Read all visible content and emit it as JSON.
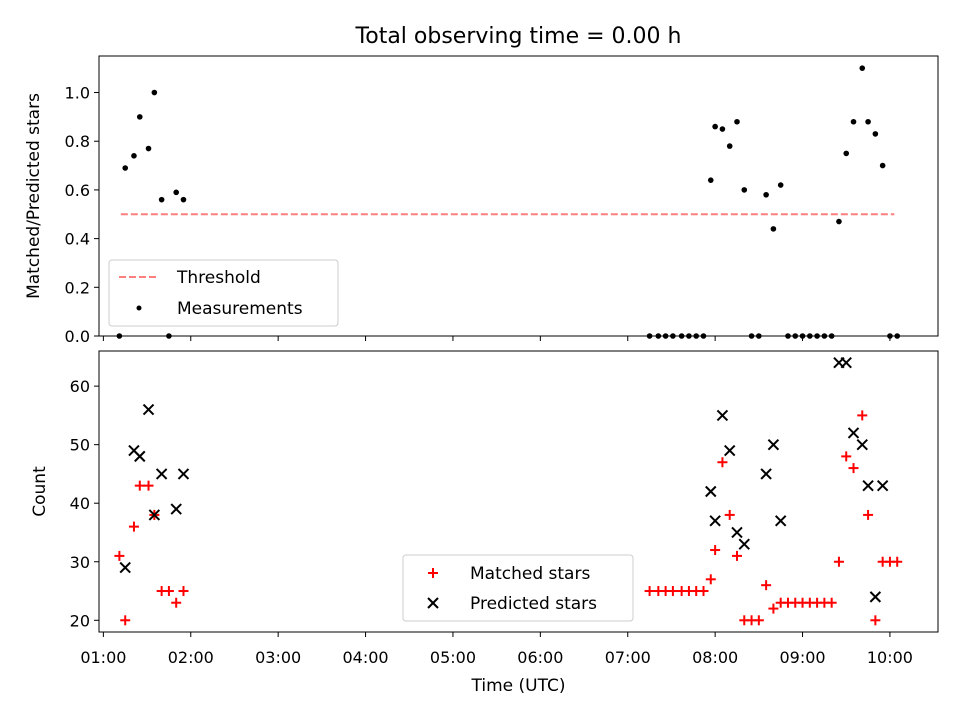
{
  "chart_data": [
    {
      "type": "scatter",
      "title": "Total observing time = 0.00 h",
      "xlabel": "",
      "ylabel": "Matched/Predicted stars",
      "xlim": [
        "00:57",
        "10:33"
      ],
      "ylim": [
        0,
        1.15
      ],
      "yticks": [
        0.0,
        0.2,
        0.4,
        0.6,
        0.8,
        1.0
      ],
      "ytick_labels": [
        "0.0",
        "0.2",
        "0.4",
        "0.6",
        "0.8",
        "1.0"
      ],
      "grid": false,
      "legend": {
        "placement": "lower-left",
        "entries": [
          "Threshold",
          "Measurements"
        ]
      },
      "threshold": {
        "name": "Threshold",
        "y": 0.5,
        "x_start": "01:12",
        "x_end": "10:03",
        "color": "#ff7f7f",
        "style": "dashed"
      },
      "series": [
        {
          "name": "Measurements",
          "marker": "dot",
          "color": "#000000",
          "points": [
            [
              "01:11",
              0.0
            ],
            [
              "01:15",
              0.69
            ],
            [
              "01:21",
              0.74
            ],
            [
              "01:25",
              0.9
            ],
            [
              "01:31",
              0.77
            ],
            [
              "01:35",
              1.0
            ],
            [
              "01:40",
              0.56
            ],
            [
              "01:45",
              0.0
            ],
            [
              "01:50",
              0.59
            ],
            [
              "01:55",
              0.56
            ],
            [
              "07:15",
              0.0
            ],
            [
              "07:21",
              0.0
            ],
            [
              "07:26",
              0.0
            ],
            [
              "07:31",
              0.0
            ],
            [
              "07:37",
              0.0
            ],
            [
              "07:42",
              0.0
            ],
            [
              "07:47",
              0.0
            ],
            [
              "07:52",
              0.0
            ],
            [
              "07:57",
              0.64
            ],
            [
              "08:00",
              0.86
            ],
            [
              "08:05",
              0.85
            ],
            [
              "08:10",
              0.78
            ],
            [
              "08:15",
              0.88
            ],
            [
              "08:20",
              0.6
            ],
            [
              "08:25",
              0.0
            ],
            [
              "08:30",
              0.0
            ],
            [
              "08:35",
              0.58
            ],
            [
              "08:40",
              0.44
            ],
            [
              "08:45",
              0.62
            ],
            [
              "08:50",
              0.0
            ],
            [
              "08:55",
              0.0
            ],
            [
              "09:00",
              0.0
            ],
            [
              "09:05",
              0.0
            ],
            [
              "09:10",
              0.0
            ],
            [
              "09:15",
              0.0
            ],
            [
              "09:20",
              0.0
            ],
            [
              "09:25",
              0.47
            ],
            [
              "09:30",
              0.75
            ],
            [
              "09:35",
              0.88
            ],
            [
              "09:41",
              1.1
            ],
            [
              "09:45",
              0.88
            ],
            [
              "09:50",
              0.83
            ],
            [
              "09:55",
              0.7
            ],
            [
              "10:00",
              0.0
            ],
            [
              "10:05",
              0.0
            ]
          ]
        }
      ]
    },
    {
      "type": "scatter",
      "title": "",
      "xlabel": "Time (UTC)",
      "ylabel": "Count",
      "xlim": [
        "00:57",
        "10:33"
      ],
      "ylim": [
        18,
        66
      ],
      "xticks": [
        "01:00",
        "02:00",
        "03:00",
        "04:00",
        "05:00",
        "06:00",
        "07:00",
        "08:00",
        "09:00",
        "10:00"
      ],
      "yticks": [
        20,
        30,
        40,
        50,
        60
      ],
      "ytick_labels": [
        "20",
        "30",
        "40",
        "50",
        "60"
      ],
      "grid": false,
      "legend": {
        "placement": "lower-center",
        "entries": [
          "Matched stars",
          "Predicted stars"
        ]
      },
      "series": [
        {
          "name": "Matched stars",
          "marker": "plus",
          "color": "#ff0000",
          "points": [
            [
              "01:11",
              31
            ],
            [
              "01:15",
              20
            ],
            [
              "01:21",
              36
            ],
            [
              "01:25",
              43
            ],
            [
              "01:31",
              43
            ],
            [
              "01:35",
              38
            ],
            [
              "01:40",
              25
            ],
            [
              "01:45",
              25
            ],
            [
              "01:50",
              23
            ],
            [
              "01:55",
              25
            ],
            [
              "07:15",
              25
            ],
            [
              "07:21",
              25
            ],
            [
              "07:26",
              25
            ],
            [
              "07:31",
              25
            ],
            [
              "07:37",
              25
            ],
            [
              "07:42",
              25
            ],
            [
              "07:47",
              25
            ],
            [
              "07:52",
              25
            ],
            [
              "07:57",
              27
            ],
            [
              "08:00",
              32
            ],
            [
              "08:05",
              47
            ],
            [
              "08:10",
              38
            ],
            [
              "08:15",
              31
            ],
            [
              "08:20",
              20
            ],
            [
              "08:25",
              20
            ],
            [
              "08:30",
              20
            ],
            [
              "08:35",
              26
            ],
            [
              "08:40",
              22
            ],
            [
              "08:45",
              23
            ],
            [
              "08:50",
              23
            ],
            [
              "08:55",
              23
            ],
            [
              "09:00",
              23
            ],
            [
              "09:05",
              23
            ],
            [
              "09:10",
              23
            ],
            [
              "09:15",
              23
            ],
            [
              "09:20",
              23
            ],
            [
              "09:25",
              30
            ],
            [
              "09:30",
              48
            ],
            [
              "09:35",
              46
            ],
            [
              "09:41",
              55
            ],
            [
              "09:45",
              38
            ],
            [
              "09:50",
              20
            ],
            [
              "09:55",
              30
            ],
            [
              "10:00",
              30
            ],
            [
              "10:05",
              30
            ]
          ]
        },
        {
          "name": "Predicted stars",
          "marker": "x",
          "color": "#000000",
          "points": [
            [
              "01:15",
              29
            ],
            [
              "01:21",
              49
            ],
            [
              "01:25",
              48
            ],
            [
              "01:31",
              56
            ],
            [
              "01:35",
              38
            ],
            [
              "01:40",
              45
            ],
            [
              "01:50",
              39
            ],
            [
              "01:55",
              45
            ],
            [
              "07:57",
              42
            ],
            [
              "08:00",
              37
            ],
            [
              "08:05",
              55
            ],
            [
              "08:10",
              49
            ],
            [
              "08:15",
              35
            ],
            [
              "08:20",
              33
            ],
            [
              "08:35",
              45
            ],
            [
              "08:40",
              50
            ],
            [
              "08:45",
              37
            ],
            [
              "09:25",
              64
            ],
            [
              "09:30",
              64
            ],
            [
              "09:35",
              52
            ],
            [
              "09:41",
              50
            ],
            [
              "09:45",
              43
            ],
            [
              "09:50",
              24
            ],
            [
              "09:55",
              43
            ]
          ]
        }
      ]
    }
  ]
}
